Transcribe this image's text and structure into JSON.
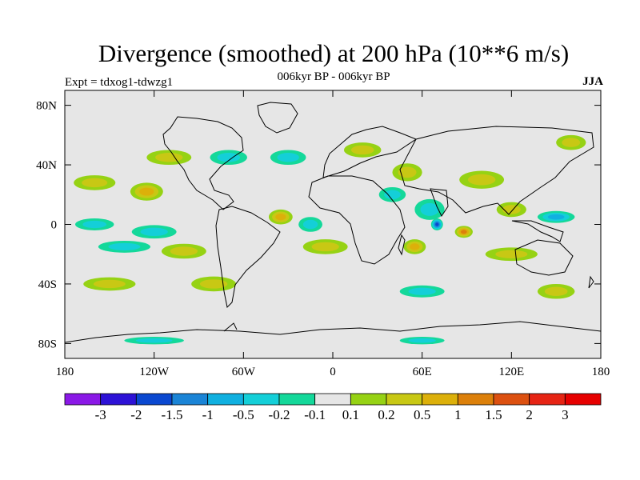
{
  "chart_data": {
    "type": "heatmap",
    "title": "Divergence (smoothed) at 200 hPa (10**6 m/s)",
    "subtitle": "006kyr BP - 006kyr BP",
    "left_label": "Expt = tdxog1-tdwzg1",
    "right_label": "JJA",
    "xlim": [
      -180,
      180
    ],
    "ylim": [
      -90,
      90
    ],
    "x_ticks": [
      {
        "value": -180,
        "label": "180"
      },
      {
        "value": -120,
        "label": "120W"
      },
      {
        "value": -60,
        "label": "60W"
      },
      {
        "value": 0,
        "label": "0"
      },
      {
        "value": 60,
        "label": "60E"
      },
      {
        "value": 120,
        "label": "120E"
      },
      {
        "value": 180,
        "label": "180"
      }
    ],
    "y_ticks": [
      {
        "value": 80,
        "label": "80N"
      },
      {
        "value": 40,
        "label": "40N"
      },
      {
        "value": 0,
        "label": "0"
      },
      {
        "value": -40,
        "label": "40S"
      },
      {
        "value": -80,
        "label": "80S"
      }
    ],
    "colorbar": {
      "levels": [
        "-3",
        "-2",
        "-1.5",
        "-1",
        "-0.5",
        "-0.2",
        "-0.1",
        "0.1",
        "0.2",
        "0.5",
        "1",
        "1.5",
        "2",
        "3"
      ],
      "colors": [
        "#8a18e6",
        "#2d12d6",
        "#0a48d0",
        "#1a84d6",
        "#10b0e0",
        "#14cfd8",
        "#14d89a",
        "#e6e6e6",
        "#96d214",
        "#c8c814",
        "#dcb00a",
        "#dc800a",
        "#dc5010",
        "#e62414",
        "#e60000"
      ]
    },
    "features": [
      {
        "lon": -160,
        "lat": 28,
        "value": 0.35,
        "width": 28,
        "height": 10
      },
      {
        "lon": -125,
        "lat": 22,
        "value": 0.55,
        "width": 22,
        "height": 12
      },
      {
        "lon": -160,
        "lat": 0,
        "value": -0.3,
        "width": 26,
        "height": 8
      },
      {
        "lon": -120,
        "lat": -5,
        "value": -0.45,
        "width": 30,
        "height": 9
      },
      {
        "lon": -100,
        "lat": -18,
        "value": 0.4,
        "width": 30,
        "height": 10
      },
      {
        "lon": -140,
        "lat": -15,
        "value": -0.35,
        "width": 35,
        "height": 8
      },
      {
        "lon": -150,
        "lat": -40,
        "value": 0.3,
        "width": 35,
        "height": 9
      },
      {
        "lon": -80,
        "lat": -40,
        "value": 0.3,
        "width": 30,
        "height": 10
      },
      {
        "lon": -35,
        "lat": 5,
        "value": 0.55,
        "width": 16,
        "height": 10
      },
      {
        "lon": -15,
        "lat": 0,
        "value": -0.4,
        "width": 16,
        "height": 10
      },
      {
        "lon": -5,
        "lat": -15,
        "value": 0.3,
        "width": 30,
        "height": 10
      },
      {
        "lon": -30,
        "lat": 45,
        "value": -0.3,
        "width": 24,
        "height": 10
      },
      {
        "lon": -110,
        "lat": 45,
        "value": 0.25,
        "width": 30,
        "height": 10
      },
      {
        "lon": -70,
        "lat": 45,
        "value": -0.25,
        "width": 25,
        "height": 10
      },
      {
        "lon": 20,
        "lat": 50,
        "value": 0.3,
        "width": 25,
        "height": 10
      },
      {
        "lon": 50,
        "lat": 35,
        "value": 0.3,
        "width": 20,
        "height": 12
      },
      {
        "lon": 40,
        "lat": 20,
        "value": -0.3,
        "width": 18,
        "height": 10
      },
      {
        "lon": 70,
        "lat": 0,
        "value": -1.8,
        "width": 8,
        "height": 8
      },
      {
        "lon": 65,
        "lat": 10,
        "value": -0.45,
        "width": 20,
        "height": 14
      },
      {
        "lon": 88,
        "lat": -5,
        "value": 1.2,
        "width": 12,
        "height": 8
      },
      {
        "lon": 55,
        "lat": -15,
        "value": 0.5,
        "width": 15,
        "height": 10
      },
      {
        "lon": 100,
        "lat": 30,
        "value": 0.3,
        "width": 30,
        "height": 12
      },
      {
        "lon": 120,
        "lat": 10,
        "value": 0.35,
        "width": 20,
        "height": 10
      },
      {
        "lon": 150,
        "lat": 5,
        "value": -0.5,
        "width": 25,
        "height": 8
      },
      {
        "lon": 120,
        "lat": -20,
        "value": 0.3,
        "width": 35,
        "height": 9
      },
      {
        "lon": 150,
        "lat": -45,
        "value": 0.3,
        "width": 25,
        "height": 10
      },
      {
        "lon": 60,
        "lat": -45,
        "value": -0.3,
        "width": 30,
        "height": 8
      },
      {
        "lon": -120,
        "lat": -78,
        "value": -0.25,
        "width": 40,
        "height": 5
      },
      {
        "lon": 60,
        "lat": -78,
        "value": -0.2,
        "width": 30,
        "height": 5
      },
      {
        "lon": 160,
        "lat": 55,
        "value": 0.3,
        "width": 20,
        "height": 10
      }
    ]
  }
}
